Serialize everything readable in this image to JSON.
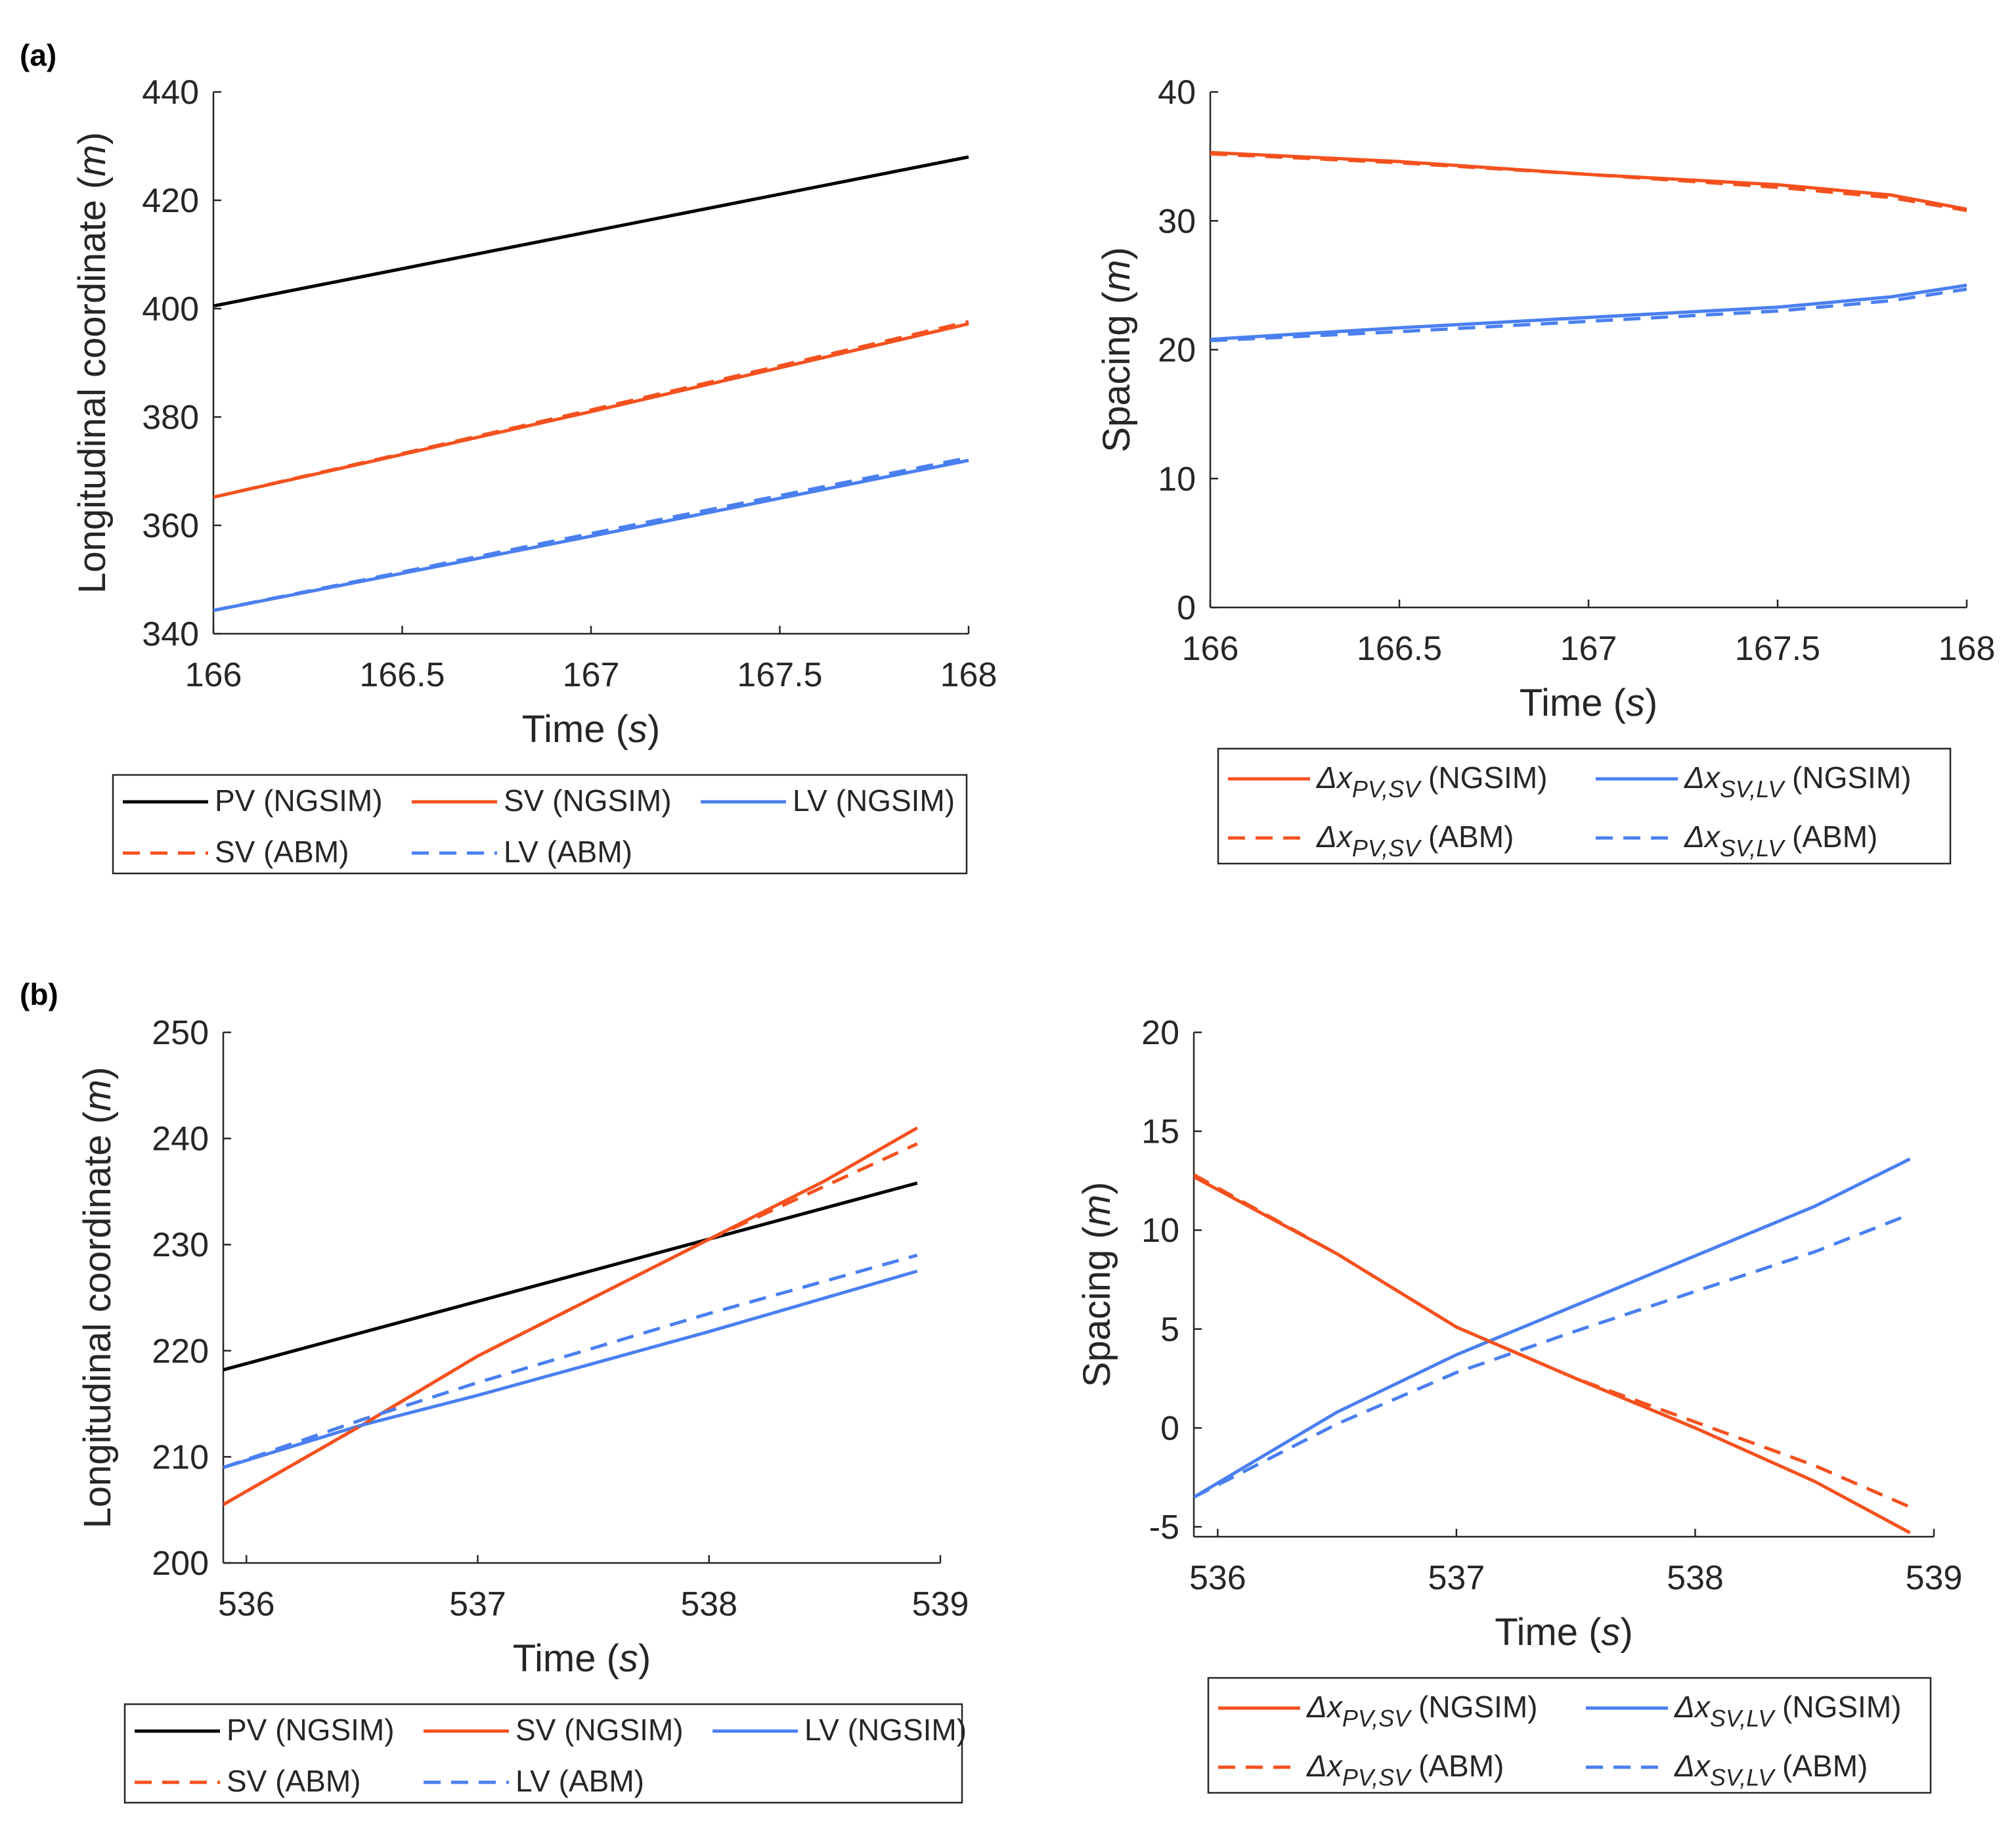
{
  "colors": {
    "pv": "#000000",
    "sv": "#f4511e",
    "lv": "#4a7ff0",
    "axis": "#262626"
  },
  "chart_data": [
    {
      "panel_label": "(a)",
      "type": "line",
      "ylabel_main": "Longitudinal coordinate ",
      "ylabel_unit": "m",
      "xlabel_main": "Time ",
      "xlabel_unit": "s",
      "xlim": [
        166,
        168
      ],
      "ylim": [
        340,
        440
      ],
      "xticks": [
        166,
        166.5,
        167,
        167.5,
        168
      ],
      "xtick_labels": [
        "166",
        "166.5",
        "167",
        "167.5",
        "168"
      ],
      "yticks": [
        340,
        360,
        380,
        400,
        420,
        440
      ],
      "ytick_labels": [
        "340",
        "360",
        "380",
        "400",
        "420",
        "440"
      ],
      "series": [
        {
          "name": "PV (NGSIM)",
          "color_key": "pv",
          "dash": false,
          "x": [
            166,
            168
          ],
          "y": [
            400.5,
            428
          ]
        },
        {
          "name": "SV (NGSIM)",
          "color_key": "sv",
          "dash": false,
          "x": [
            166,
            167,
            168
          ],
          "y": [
            365.2,
            381,
            397.2
          ]
        },
        {
          "name": "LV (NGSIM)",
          "color_key": "lv",
          "dash": false,
          "x": [
            166,
            167,
            168
          ],
          "y": [
            344.3,
            358,
            372
          ]
        },
        {
          "name": "SV (ABM)",
          "color_key": "sv",
          "dash": true,
          "x": [
            166,
            167,
            168
          ],
          "y": [
            365.2,
            381.3,
            397.6
          ]
        },
        {
          "name": "LV (ABM)",
          "color_key": "lv",
          "dash": true,
          "x": [
            166,
            167,
            168
          ],
          "y": [
            344.3,
            358.5,
            372.5
          ]
        }
      ]
    },
    {
      "type": "line",
      "ylabel_main": "Spacing ",
      "ylabel_unit": "m",
      "xlabel_main": "Time ",
      "xlabel_unit": "s",
      "xlim": [
        166,
        168
      ],
      "ylim": [
        0,
        40
      ],
      "xticks": [
        166,
        166.5,
        167,
        167.5,
        168
      ],
      "xtick_labels": [
        "166",
        "166.5",
        "167",
        "167.5",
        "168"
      ],
      "yticks": [
        0,
        10,
        20,
        30,
        40
      ],
      "ytick_labels": [
        "0",
        "10",
        "20",
        "30",
        "40"
      ],
      "series": [
        {
          "name": "Δx PV,SV (NGSIM)",
          "color_key": "sv",
          "dash": false,
          "x": [
            166,
            166.5,
            167,
            167.5,
            167.8,
            168
          ],
          "y": [
            35.3,
            34.6,
            33.6,
            32.8,
            32.0,
            30.9
          ]
        },
        {
          "name": "Δx SV,LV (NGSIM)",
          "color_key": "lv",
          "dash": false,
          "x": [
            166,
            166.5,
            167,
            167.5,
            167.8,
            168
          ],
          "y": [
            20.8,
            21.7,
            22.5,
            23.3,
            24.1,
            25.0
          ]
        },
        {
          "name": "Δx PV,SV (ABM)",
          "color_key": "sv",
          "dash": true,
          "x": [
            166,
            166.5,
            167,
            167.5,
            167.8,
            168
          ],
          "y": [
            35.2,
            34.5,
            33.6,
            32.6,
            31.8,
            30.8
          ]
        },
        {
          "name": "Δx SV,LV (ABM)",
          "color_key": "lv",
          "dash": true,
          "x": [
            166,
            166.5,
            167,
            167.5,
            167.8,
            168
          ],
          "y": [
            20.7,
            21.4,
            22.2,
            23.0,
            23.8,
            24.7
          ]
        }
      ]
    },
    {
      "panel_label": "(b)",
      "type": "line",
      "ylabel_main": "Longitudinal coordinate ",
      "ylabel_unit": "m",
      "xlabel_main": "Time ",
      "xlabel_unit": "s",
      "xlim": [
        535.9,
        539
      ],
      "ylim": [
        200,
        250
      ],
      "xticks": [
        536,
        537,
        538,
        539
      ],
      "xtick_labels": [
        "536",
        "537",
        "538",
        "539"
      ],
      "yticks": [
        200,
        210,
        220,
        230,
        240,
        250
      ],
      "ytick_labels": [
        "200",
        "210",
        "220",
        "230",
        "240",
        "250"
      ],
      "series": [
        {
          "name": "PV (NGSIM)",
          "color_key": "pv",
          "dash": false,
          "x": [
            535.9,
            538.9
          ],
          "y": [
            218.2,
            235.8
          ]
        },
        {
          "name": "SV (NGSIM)",
          "color_key": "sv",
          "dash": false,
          "x": [
            535.9,
            536.5,
            537,
            537.5,
            538,
            538.5,
            538.9
          ],
          "y": [
            205.5,
            213,
            219.5,
            225,
            230.5,
            236,
            241
          ]
        },
        {
          "name": "LV (NGSIM)",
          "color_key": "lv",
          "dash": false,
          "x": [
            535.9,
            536.5,
            537,
            538,
            538.9
          ],
          "y": [
            209,
            213,
            215.8,
            221.8,
            227.5
          ]
        },
        {
          "name": "SV (ABM)",
          "color_key": "sv",
          "dash": true,
          "x": [
            535.9,
            536.5,
            537,
            537.5,
            538,
            538.5,
            538.9
          ],
          "y": [
            205.5,
            213,
            219.5,
            225,
            230.5,
            235.5,
            239.5
          ]
        },
        {
          "name": "LV (ABM)",
          "color_key": "lv",
          "dash": true,
          "x": [
            535.9,
            536.5,
            537,
            538,
            538.9
          ],
          "y": [
            209,
            213.5,
            217,
            223.5,
            229
          ]
        }
      ]
    },
    {
      "type": "line",
      "ylabel_main": "Spacing ",
      "ylabel_unit": "m",
      "xlabel_main": "Time ",
      "xlabel_unit": "s",
      "xlim": [
        535.9,
        539
      ],
      "ylim": [
        -5.5,
        20
      ],
      "xticks": [
        536,
        537,
        538,
        539
      ],
      "xtick_labels": [
        "536",
        "537",
        "538",
        "539"
      ],
      "yticks": [
        -5,
        0,
        5,
        10,
        15,
        20
      ],
      "ytick_labels": [
        "-5",
        "0",
        "5",
        "10",
        "15",
        "20"
      ],
      "series": [
        {
          "name": "Δx PV,SV (NGSIM)",
          "color_key": "sv",
          "dash": false,
          "x": [
            535.9,
            536.5,
            537,
            537.5,
            538,
            538.5,
            538.9
          ],
          "y": [
            12.7,
            8.8,
            5.1,
            2.5,
            0,
            -2.7,
            -5.3
          ]
        },
        {
          "name": "Δx SV,LV (NGSIM)",
          "color_key": "lv",
          "dash": false,
          "x": [
            535.9,
            536.5,
            537,
            537.5,
            538,
            538.5,
            538.9
          ],
          "y": [
            -3.5,
            0.8,
            3.7,
            6.2,
            8.7,
            11.2,
            13.6
          ]
        },
        {
          "name": "Δx PV,SV (ABM)",
          "color_key": "sv",
          "dash": true,
          "x": [
            535.9,
            536.5,
            537,
            537.5,
            538,
            538.5,
            538.9
          ],
          "y": [
            12.8,
            8.8,
            5.1,
            2.5,
            0.3,
            -1.9,
            -4.0
          ]
        },
        {
          "name": "Δx SV,LV (ABM)",
          "color_key": "lv",
          "dash": true,
          "x": [
            535.9,
            536.5,
            537,
            537.5,
            538,
            538.5,
            538.9
          ],
          "y": [
            -3.5,
            0.2,
            2.8,
            4.9,
            6.9,
            8.9,
            10.8
          ]
        }
      ]
    }
  ],
  "legend_a": [
    {
      "label": "PV (NGSIM)",
      "color_key": "pv",
      "dash": false
    },
    {
      "label": "SV (NGSIM)",
      "color_key": "sv",
      "dash": false
    },
    {
      "label": "LV (NGSIM)",
      "color_key": "lv",
      "dash": false
    },
    {
      "label": "SV (ABM)",
      "color_key": "sv",
      "dash": true
    },
    {
      "label": "LV (ABM)",
      "color_key": "lv",
      "dash": true
    }
  ],
  "legend_b": [
    {
      "prefix": "Δx",
      "sub": "PV,SV",
      "suffix": " (NGSIM)",
      "color_key": "sv",
      "dash": false
    },
    {
      "prefix": "Δx",
      "sub": "SV,LV",
      "suffix": " (NGSIM)",
      "color_key": "lv",
      "dash": false
    },
    {
      "prefix": "Δx",
      "sub": "PV,SV",
      "suffix": " (ABM)",
      "color_key": "sv",
      "dash": true
    },
    {
      "prefix": "Δx",
      "sub": "SV,LV",
      "suffix": " (ABM)",
      "color_key": "lv",
      "dash": true
    }
  ]
}
